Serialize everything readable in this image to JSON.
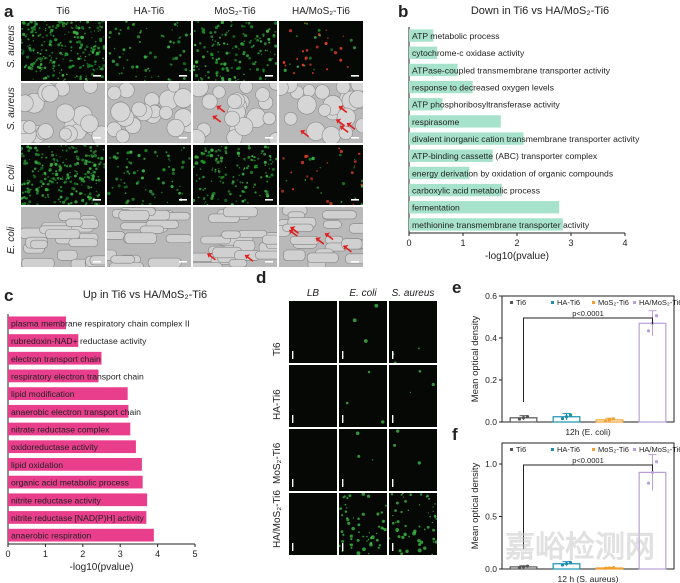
{
  "panel_labels": {
    "a": "a",
    "b": "b",
    "c": "c",
    "d": "d",
    "e": "e",
    "f": "f"
  },
  "panel_a": {
    "columns": [
      "Ti6",
      "HA-Ti6",
      "MoS₂-Ti6",
      "HA/MoS₂-Ti6"
    ],
    "rows": [
      "S. aureus",
      "S. aureus",
      "E. coli",
      "E. coli"
    ]
  },
  "panel_d": {
    "columns": [
      "LB",
      "E. coli",
      "S. aureus"
    ],
    "rows": [
      "Ti6",
      "HA-Ti6",
      "MoS₂-Ti6",
      "HA/MoS₂-Ti6"
    ]
  },
  "chart_b": {
    "type": "bar",
    "title": "Down in Ti6 vs HA/MoS₂-Ti6",
    "xlabel": "-log10(pvalue)",
    "xlim": [
      0,
      4
    ],
    "xticks": [
      "0",
      "1",
      "2",
      "3",
      "4"
    ],
    "color": "#a7e3cc",
    "categories": [
      "ATP metabolic process",
      "cytochrome-c oxidase activity",
      "ATPase-coupled transmembrane transporter activity",
      "response to decreased oxygen levels",
      "ATP phosphoribosyltransferase activity",
      "respirasome",
      "divalent inorganic cation transmembrane transporter activity",
      "ATP-binding cassette (ABC) transporter complex",
      "energy derivation by oxidation of organic compounds",
      "carboxylic acid metabolic process",
      "fermentation",
      "methionine transmembrane transporter activity"
    ],
    "values": [
      0.45,
      0.52,
      0.9,
      1.18,
      0.62,
      1.7,
      2.12,
      1.55,
      1.12,
      1.72,
      2.78,
      2.85
    ]
  },
  "chart_c": {
    "type": "bar",
    "title": "Up in Ti6 vs HA/MoS₂-Ti6",
    "xlabel": "-log10(pvalue)",
    "xlim": [
      0,
      5
    ],
    "xticks": [
      "0",
      "1",
      "2",
      "3",
      "4",
      "5"
    ],
    "color": "#e83e8c",
    "categories": [
      "plasma membrane respiratory chain complex II",
      "rubredoxin-NAD+ reductase activity",
      "electron transport chain",
      "respiratory electron transport chain",
      "lipid modification",
      "anaerobic electron transport chain",
      "nitrate reductase complex",
      "oxidoreductase activity",
      "lipid oxidation",
      "organic acid metabolic process",
      "nitrite reductase activity",
      "nitrite reductase [NAD(P)H] activity",
      "anaerobic respiration"
    ],
    "values": [
      1.55,
      1.88,
      2.5,
      2.42,
      3.2,
      3.22,
      3.27,
      3.42,
      3.58,
      3.6,
      3.72,
      3.7,
      3.9
    ]
  },
  "chart_e": {
    "type": "bar",
    "ylabel": "Mean optical density",
    "xlabel": "12h (E. coli)",
    "ylim": [
      0,
      0.6
    ],
    "yticks": [
      "0.0",
      "0.2",
      "0.4",
      "0.6"
    ],
    "pvalue": "p<0.0001",
    "categories": [
      "Ti6",
      "HA-Ti6",
      "MoS₂-Ti6",
      "HA/MoS₂-Ti6"
    ],
    "values": [
      0.02,
      0.025,
      0.01,
      0.47
    ],
    "errors": [
      0.01,
      0.015,
      0.008,
      0.06
    ],
    "colors": [
      "#555555",
      "#1a8fb0",
      "#f0a030",
      "#b8a0d8"
    ]
  },
  "chart_f": {
    "type": "bar",
    "ylabel": "Mean optical density",
    "xlabel": "12 h (S. aureus)",
    "ylim": [
      0,
      1.2
    ],
    "yticks": [
      "0.0",
      "0.5",
      "1.0"
    ],
    "pvalue": "p<0.0001",
    "categories": [
      "Ti6",
      "HA-Ti6",
      "MoS₂-Ti6",
      "HA/MoS₂-Ti6"
    ],
    "values": [
      0.02,
      0.05,
      0.01,
      0.92
    ],
    "errors": [
      0.01,
      0.02,
      0.005,
      0.17
    ],
    "colors": [
      "#555555",
      "#1a8fb0",
      "#f0a030",
      "#b8a0d8"
    ]
  },
  "watermark": "嘉峪检测网"
}
